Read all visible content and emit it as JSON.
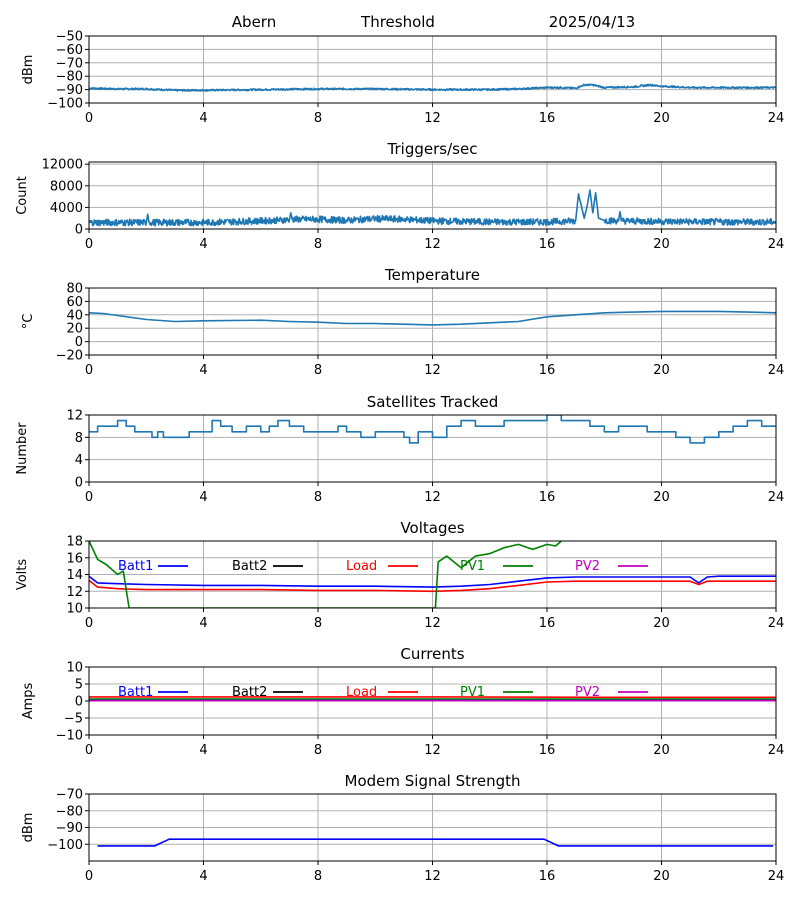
{
  "header": {
    "station": "Abern",
    "channel": "Threshold",
    "date": "2025/04/13"
  },
  "colors": {
    "blue": "#0000ff",
    "tab_blue": "#1f77b4",
    "red": "#ff0000",
    "green": "#008000",
    "magenta": "#bf00bf",
    "black": "#000000",
    "grid": "#b0b0b0"
  },
  "chart_data": [
    {
      "id": "threshold",
      "type": "line",
      "title": "",
      "ylabel": "dBm",
      "xlim": [
        0,
        24
      ],
      "ylim": [
        -100,
        -50
      ],
      "yticks": [
        -100,
        -90,
        -80,
        -70,
        -60,
        -50
      ],
      "xticks": [
        0,
        4,
        8,
        12,
        16,
        20,
        24
      ],
      "grid": true,
      "noise": 0.6,
      "series": [
        {
          "name": "",
          "color": "#1f77b4",
          "x": [
            0,
            1,
            2,
            3,
            4,
            6,
            8,
            10,
            12,
            14,
            15,
            16,
            16.5,
            17,
            17.3,
            17.6,
            18,
            19,
            19.6,
            20,
            20.5,
            21,
            22,
            23,
            24
          ],
          "y": [
            -89,
            -89.5,
            -89.5,
            -90.5,
            -90.5,
            -90,
            -89.5,
            -89.5,
            -90,
            -90,
            -89.5,
            -88.5,
            -88.5,
            -89,
            -86.5,
            -86.5,
            -88.5,
            -88,
            -86.5,
            -87.5,
            -88,
            -88.5,
            -88.5,
            -88.5,
            -88.5
          ]
        }
      ]
    },
    {
      "id": "triggers",
      "type": "line",
      "title": "Triggers/sec",
      "ylabel": "Count",
      "xlim": [
        0,
        24
      ],
      "ylim": [
        0,
        12400
      ],
      "yticks": [
        0,
        4000,
        8000,
        12000
      ],
      "xticks": [
        0,
        4,
        8,
        12,
        16,
        20,
        24
      ],
      "grid": true,
      "noise": 600,
      "series": [
        {
          "name": "",
          "color": "#1f77b4",
          "x": [
            0,
            2,
            2.05,
            2.1,
            4,
            6,
            7,
            7.05,
            7.1,
            8,
            9,
            10,
            11,
            12,
            14,
            16,
            17,
            17.1,
            17.3,
            17.4,
            17.5,
            17.6,
            17.7,
            17.8,
            18,
            18.5,
            18.55,
            18.6,
            20,
            22,
            24
          ],
          "y": [
            1200,
            1200,
            2700,
            1200,
            1200,
            1500,
            1700,
            3000,
            1800,
            1800,
            1600,
            1900,
            1800,
            1500,
            1300,
            1300,
            1500,
            6500,
            2000,
            4200,
            7200,
            3000,
            6700,
            2000,
            1600,
            1500,
            3200,
            1500,
            1400,
            1300,
            1300
          ]
        }
      ]
    },
    {
      "id": "temperature",
      "type": "line",
      "title": "Temperature",
      "ylabel": "°C",
      "xlim": [
        0,
        24
      ],
      "ylim": [
        -20,
        80
      ],
      "yticks": [
        -20,
        0,
        20,
        40,
        60,
        80
      ],
      "xticks": [
        0,
        4,
        8,
        12,
        16,
        20,
        24
      ],
      "grid": true,
      "noise": 0,
      "series": [
        {
          "name": "",
          "color": "#1f77b4",
          "x": [
            0,
            0.5,
            1,
            2,
            3,
            4,
            6,
            7,
            8,
            9,
            10,
            11,
            12,
            13,
            14,
            15,
            16,
            17,
            18,
            19,
            20,
            22,
            23,
            24
          ],
          "y": [
            43,
            42,
            39,
            33,
            30,
            31,
            32,
            30,
            29,
            27,
            27,
            26,
            25,
            26,
            28,
            30,
            37,
            40,
            43,
            44,
            45,
            45,
            44,
            43
          ]
        }
      ]
    },
    {
      "id": "satellites",
      "type": "line",
      "title": "Satellites Tracked",
      "ylabel": "Number",
      "xlim": [
        0,
        24
      ],
      "ylim": [
        0,
        12
      ],
      "yticks": [
        0,
        4,
        8,
        12
      ],
      "xticks": [
        0,
        4,
        8,
        12,
        16,
        20,
        24
      ],
      "grid": true,
      "noise": 0,
      "step": true,
      "series": [
        {
          "name": "",
          "color": "#1f77b4",
          "x": [
            0,
            0.3,
            0.6,
            1,
            1.3,
            1.6,
            2.2,
            2.4,
            2.6,
            3,
            3.5,
            4,
            4.3,
            4.6,
            5,
            5.5,
            6,
            6.3,
            6.6,
            7,
            7.5,
            8,
            8.3,
            8.7,
            9,
            9.5,
            10,
            10.5,
            11,
            11.2,
            11.5,
            12,
            12.5,
            13,
            13.5,
            14,
            14.5,
            15,
            15.5,
            16,
            16.5,
            17,
            17.5,
            18,
            18.5,
            19,
            19.5,
            20,
            20.5,
            21,
            21.5,
            22,
            22.5,
            23,
            23.5,
            24
          ],
          "y": [
            9,
            10,
            10,
            11,
            10,
            9,
            8,
            9,
            8,
            8,
            9,
            9,
            11,
            10,
            9,
            10,
            9,
            10,
            11,
            10,
            9,
            9,
            9,
            10,
            9,
            8,
            9,
            9,
            8,
            7,
            9,
            8,
            10,
            11,
            10,
            10,
            11,
            11,
            11,
            12,
            11,
            11,
            10,
            9,
            10,
            10,
            9,
            9,
            8,
            7,
            8,
            9,
            10,
            11,
            10,
            10
          ]
        }
      ]
    },
    {
      "id": "voltages",
      "type": "line",
      "title": "Voltages",
      "ylabel": "Volts",
      "xlim": [
        0,
        24
      ],
      "ylim": [
        10,
        18
      ],
      "yticks": [
        10,
        12,
        14,
        16,
        18
      ],
      "xticks": [
        0,
        4,
        8,
        12,
        16,
        20,
        24
      ],
      "grid": true,
      "noise": 0,
      "legend": [
        "Batt1",
        "Batt2",
        "Load",
        "PV1",
        "PV2"
      ],
      "series": [
        {
          "name": "Batt1",
          "color": "#0000ff",
          "x": [
            0,
            0.3,
            1,
            2,
            4,
            6,
            8,
            10,
            12,
            13,
            14,
            15,
            16,
            17,
            18,
            20,
            21,
            21.3,
            21.6,
            22,
            24
          ],
          "y": [
            13.8,
            13.0,
            12.9,
            12.8,
            12.7,
            12.7,
            12.6,
            12.6,
            12.5,
            12.6,
            12.8,
            13.2,
            13.6,
            13.7,
            13.7,
            13.7,
            13.7,
            13.0,
            13.7,
            13.8,
            13.8
          ]
        },
        {
          "name": "Batt2",
          "color": "#000000",
          "x": [],
          "y": []
        },
        {
          "name": "Load",
          "color": "#ff0000",
          "x": [
            0,
            0.3,
            1,
            2,
            4,
            6,
            8,
            10,
            12,
            13,
            14,
            15,
            16,
            17,
            18,
            20,
            21,
            21.3,
            21.6,
            22,
            24
          ],
          "y": [
            13.3,
            12.5,
            12.3,
            12.2,
            12.2,
            12.2,
            12.1,
            12.1,
            12.0,
            12.1,
            12.3,
            12.7,
            13.1,
            13.2,
            13.2,
            13.2,
            13.2,
            12.8,
            13.2,
            13.2,
            13.2
          ]
        },
        {
          "name": "PV1",
          "color": "#008000",
          "x": [
            0,
            0.3,
            0.6,
            1,
            1.2,
            1.4,
            12.1,
            12.2,
            12.5,
            13,
            13.5,
            14,
            14.5,
            15,
            15.5,
            16,
            16.3,
            16.5
          ],
          "y": [
            18.0,
            15.8,
            15.2,
            14.0,
            14.4,
            10.0,
            10.0,
            15.5,
            16.2,
            14.8,
            16.2,
            16.5,
            17.2,
            17.6,
            17.0,
            17.6,
            17.4,
            18.0
          ]
        },
        {
          "name": "PV2",
          "color": "#bf00bf",
          "x": [],
          "y": []
        }
      ]
    },
    {
      "id": "currents",
      "type": "line",
      "title": "Currents",
      "ylabel": "Amps",
      "xlim": [
        0,
        24
      ],
      "ylim": [
        -10,
        10
      ],
      "yticks": [
        -10,
        -5,
        0,
        5,
        10
      ],
      "xticks": [
        0,
        4,
        8,
        12,
        16,
        20,
        24
      ],
      "grid": true,
      "noise": 0,
      "legend": [
        "Batt1",
        "Batt2",
        "Load",
        "PV1",
        "PV2"
      ],
      "series": [
        {
          "name": "Batt1",
          "color": "#0000ff",
          "x": [
            0,
            24
          ],
          "y": [
            0.3,
            0.3
          ]
        },
        {
          "name": "Batt2",
          "color": "#000000",
          "x": [],
          "y": []
        },
        {
          "name": "Load",
          "color": "#ff0000",
          "x": [
            0,
            6,
            12,
            18,
            24
          ],
          "y": [
            1.2,
            1.2,
            1.2,
            1.1,
            1.1
          ]
        },
        {
          "name": "PV1",
          "color": "#008000",
          "x": [
            0,
            24
          ],
          "y": [
            0.6,
            0.6
          ]
        },
        {
          "name": "PV2",
          "color": "#bf00bf",
          "x": [
            0,
            24
          ],
          "y": [
            0.1,
            0.1
          ]
        }
      ]
    },
    {
      "id": "modem",
      "type": "line",
      "title": "Modem Signal Strength",
      "ylabel": "dBm",
      "xlim": [
        0,
        24
      ],
      "ylim": [
        -110,
        -70
      ],
      "yticks": [
        -100,
        -90,
        -80,
        -70
      ],
      "xticks": [
        0,
        4,
        8,
        12,
        16,
        20,
        24
      ],
      "grid": true,
      "noise": 0,
      "series": [
        {
          "name": "",
          "color": "#0000ff",
          "x": [
            0.3,
            2.3,
            2.8,
            15.9,
            16.4,
            23.9
          ],
          "y": [
            -101,
            -101,
            -97,
            -97,
            -101,
            -101
          ]
        }
      ]
    }
  ]
}
